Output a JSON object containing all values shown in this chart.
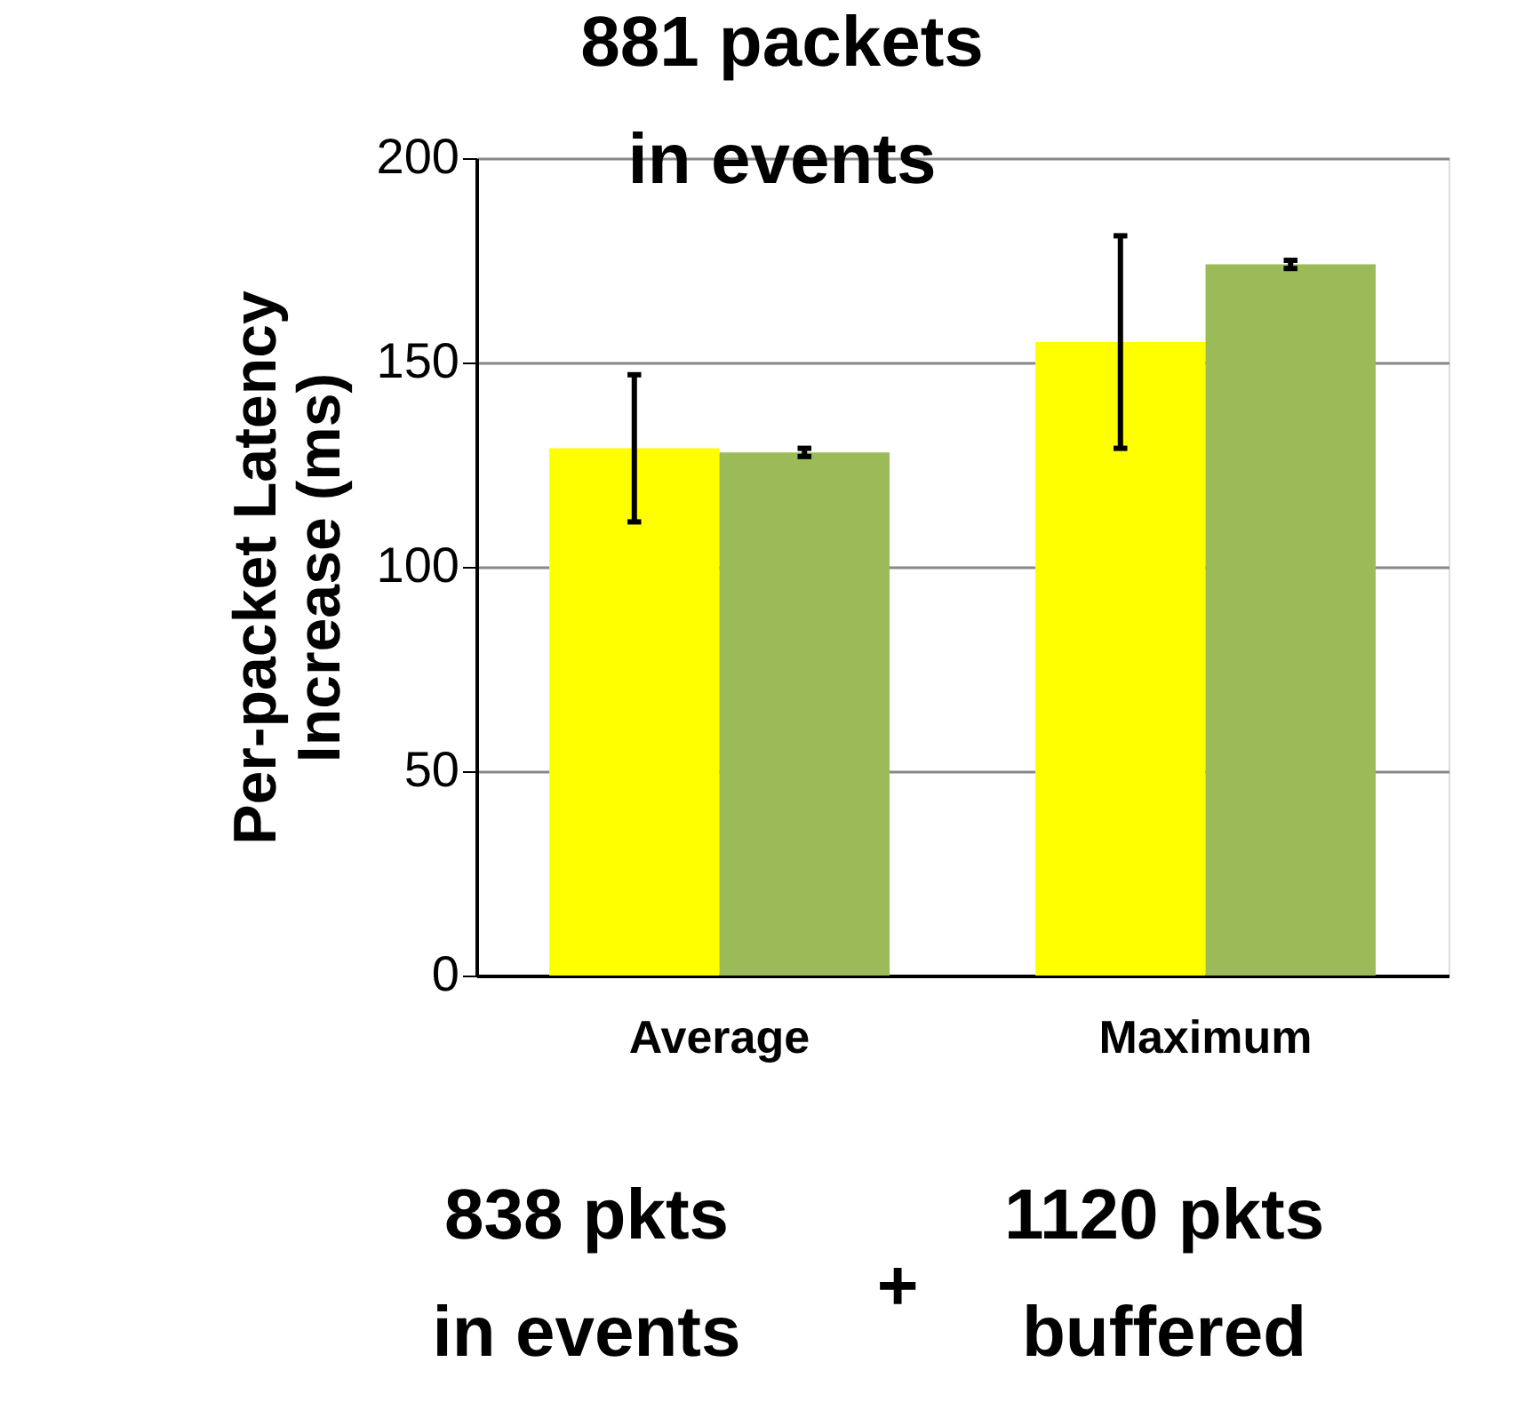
{
  "chart_data": {
    "type": "bar",
    "ylabel": "Per-packet Latency\nIncrease (ms)",
    "categories": [
      "Average",
      "Maximum"
    ],
    "series": [
      {
        "color": "#ffff00",
        "values": [
          129,
          155
        ],
        "errors": [
          18,
          26
        ]
      },
      {
        "color": "#9bbb59",
        "values": [
          128,
          174
        ],
        "errors": [
          1,
          1
        ]
      }
    ],
    "ylim": [
      0,
      200
    ],
    "yticks": [
      0,
      50,
      100,
      150,
      200
    ],
    "grid": "y",
    "legend": false,
    "annotations": [
      "881 packets\nin events",
      "838 pkts\nin events",
      "+",
      "1120 pkts\nbuffered"
    ]
  }
}
